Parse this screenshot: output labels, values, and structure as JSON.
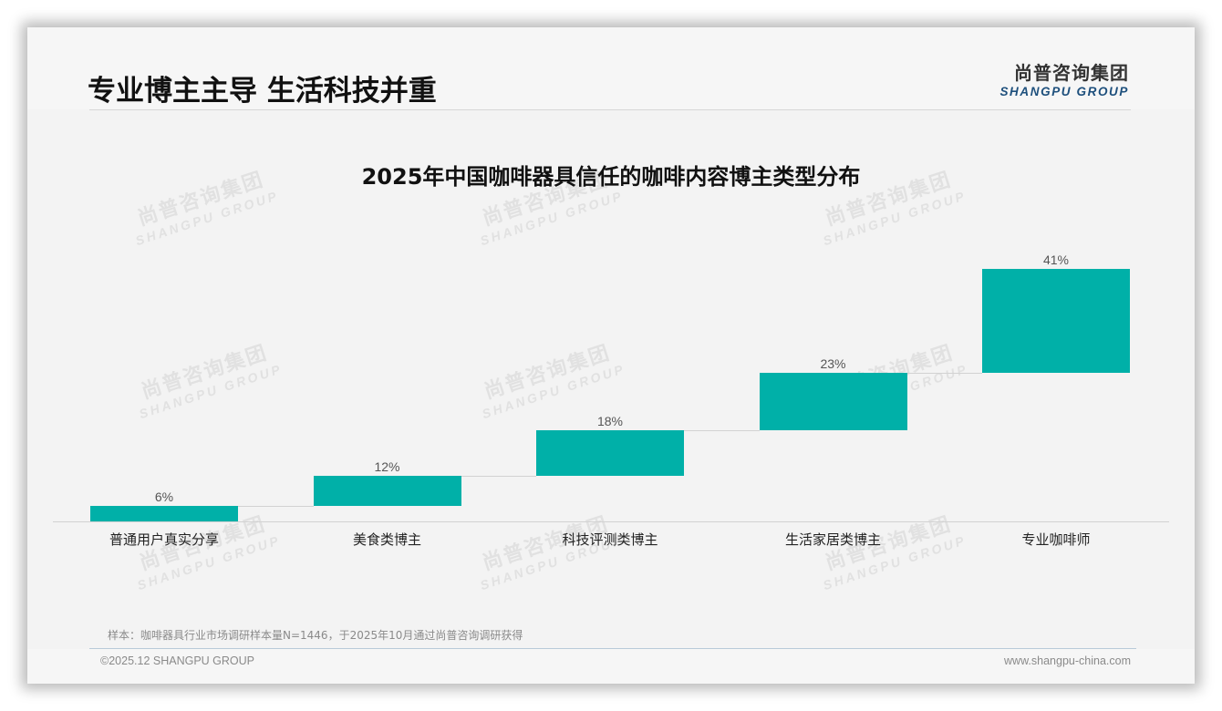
{
  "header": {
    "title": "专业博主主导 生活科技并重",
    "logo_cn": "尚普咨询集团",
    "logo_en": "SHANGPU GROUP"
  },
  "watermark": {
    "cn": "尚普咨询集团",
    "en": "SHANGPU GROUP"
  },
  "colors": {
    "bar": "#00b0a8",
    "logo_en": "#1d4f7c",
    "background": "#f3f3f3"
  },
  "chart_data": {
    "type": "bar",
    "subtype": "waterfall",
    "title": "2025年中国咖啡器具信任的咖啡内容博主类型分布",
    "categories": [
      "普通用户真实分享",
      "美食类博主",
      "科技评测类博主",
      "生活家居类博主",
      "专业咖啡师"
    ],
    "values": [
      6,
      12,
      18,
      23,
      41
    ],
    "value_labels": [
      "6%",
      "12%",
      "18%",
      "23%",
      "41%"
    ],
    "cumulative_start": [
      0,
      6,
      18,
      36,
      59
    ],
    "cumulative_end": [
      6,
      18,
      36,
      59,
      100
    ],
    "unit": "%",
    "xlabel": "",
    "ylabel": "",
    "ylim": [
      0,
      100
    ],
    "grid": false,
    "legend": null
  },
  "footer": {
    "note": "样本：咖啡器具行业市场调研样本量N=1446，于2025年10月通过尚普咨询调研获得",
    "copyright": "©2025.12 SHANGPU GROUP",
    "website": "www.shangpu-china.com"
  }
}
